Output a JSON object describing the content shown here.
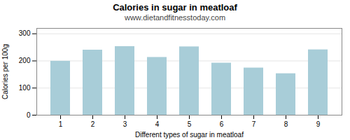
{
  "chart_data": {
    "type": "bar",
    "title": "Calories in sugar in meatloaf",
    "subtitle": "www.dietandfitnesstoday.com",
    "xlabel": "Different types of sugar in meatloaf",
    "ylabel": "Calories per 100g",
    "categories": [
      1,
      2,
      3,
      4,
      5,
      6,
      7,
      8,
      9
    ],
    "values": [
      199,
      240,
      253,
      213,
      252,
      192,
      174,
      153,
      241
    ],
    "color": "#a8cdd8",
    "ylim": [
      0,
      320
    ],
    "yticks": [
      0,
      100,
      200,
      300
    ],
    "grid": true
  }
}
